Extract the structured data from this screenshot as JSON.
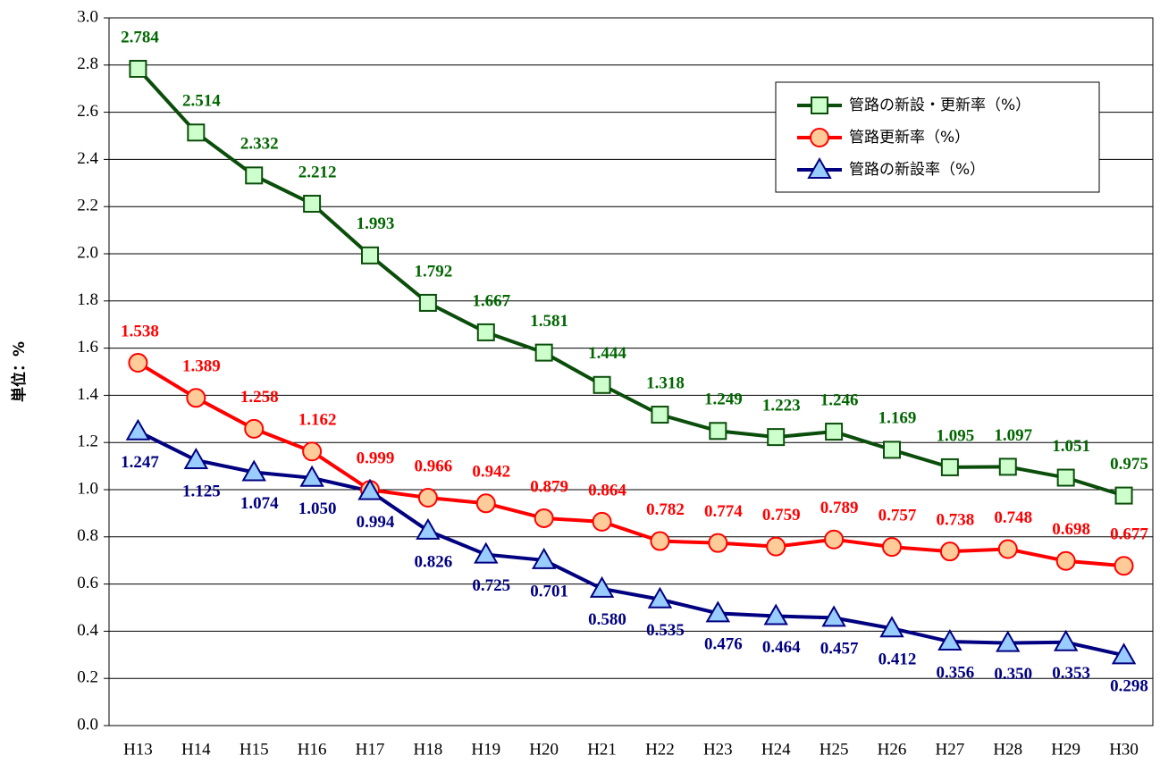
{
  "chart_data": {
    "type": "line",
    "ylabel": "単位：%",
    "categories": [
      "H13",
      "H14",
      "H15",
      "H16",
      "H17",
      "H18",
      "H19",
      "H20",
      "H21",
      "H22",
      "H23",
      "H24",
      "H25",
      "H26",
      "H27",
      "H28",
      "H29",
      "H30"
    ],
    "ylim": [
      0,
      3
    ],
    "yticks": [
      {
        "value": 0,
        "label": "0.0"
      },
      0.2,
      0.4,
      0.6,
      0.8,
      {
        "value": 1,
        "label": "1.0"
      },
      1.2,
      1.4,
      1.6,
      1.8,
      {
        "value": 2,
        "label": "2.0"
      },
      2.2,
      2.4,
      2.6,
      2.8,
      {
        "value": 3,
        "label": "3.0"
      }
    ],
    "grid": true,
    "legend": "upper right",
    "series": [
      {
        "name": "管路の新設・更新率（%）",
        "color": "#0b4d0b",
        "marker": "square",
        "marker_fill": "#ccffcc",
        "label_color": "#006600",
        "label_position": "above",
        "values": [
          2.784,
          2.514,
          2.332,
          2.212,
          1.993,
          1.792,
          1.667,
          1.581,
          1.444,
          1.318,
          1.249,
          1.223,
          1.246,
          1.169,
          1.095,
          1.097,
          1.051,
          0.975
        ],
        "value_labels": [
          "2.784",
          "2.514",
          "2.332",
          "2.212",
          "1.993",
          "1.792",
          "1.667",
          "1.581",
          "1.444",
          "1.318",
          "1.249",
          "1.223",
          "1.246",
          "1.169",
          "1.095",
          "1.097",
          "1.051",
          "0.975"
        ]
      },
      {
        "name": "管路更新率（%）",
        "color": "#ff0000",
        "marker": "circle",
        "marker_fill": "#ffcc99",
        "label_color": "#ff0000",
        "label_position": "above",
        "values": [
          1.538,
          1.389,
          1.258,
          1.162,
          0.999,
          0.966,
          0.942,
          0.879,
          0.864,
          0.782,
          0.774,
          0.759,
          0.789,
          0.757,
          0.738,
          0.748,
          0.698,
          0.677
        ],
        "value_labels": [
          "1.538",
          "1.389",
          "1.258",
          "1.162",
          "0.999",
          "0.966",
          "0.942",
          "0.879",
          "0.864",
          "0.782",
          "0.774",
          "0.759",
          "0.789",
          "0.757",
          "0.738",
          "0.748",
          "0.698",
          "0.677"
        ]
      },
      {
        "name": "管路の新設率（%）",
        "color": "#000080",
        "marker": "triangle",
        "marker_fill": "#99ccff",
        "label_color": "#000080",
        "label_position": "below",
        "values": [
          1.247,
          1.125,
          1.074,
          1.05,
          0.994,
          0.826,
          0.725,
          0.701,
          0.58,
          0.535,
          0.476,
          0.464,
          0.457,
          0.412,
          0.356,
          0.35,
          0.353,
          0.298
        ],
        "value_labels": [
          "1.247",
          "1.125",
          "1.074",
          "1.050",
          "0.994",
          "0.826",
          "0.725",
          "0.701",
          "0.580",
          "0.535",
          "0.476",
          "0.464",
          "0.457",
          "0.412",
          "0.356",
          "0.350",
          "0.353",
          "0.298"
        ]
      }
    ]
  }
}
